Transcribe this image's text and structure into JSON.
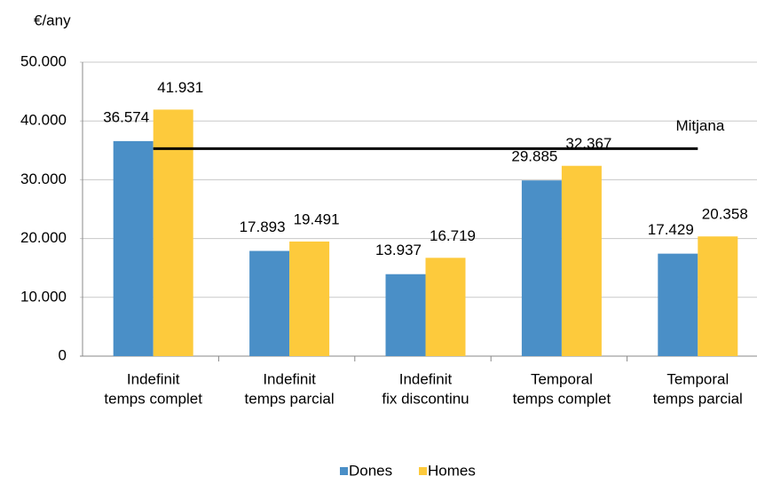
{
  "chart_data": {
    "type": "bar",
    "y_label": "€/any",
    "categories": [
      [
        "Indefinit",
        "temps complet"
      ],
      [
        "Indefinit",
        "temps parcial"
      ],
      [
        "Indefinit",
        "fix discontinu"
      ],
      [
        "Temporal",
        "temps complet"
      ],
      [
        "Temporal",
        "temps parcial"
      ]
    ],
    "series": [
      {
        "name": "Dones",
        "color": "#4a8fc7",
        "values": [
          36574,
          17893,
          13937,
          29885,
          17429
        ],
        "value_labels": [
          "36.574",
          "17.893",
          "13.937",
          "29.885",
          "17.429"
        ]
      },
      {
        "name": "Homes",
        "color": "#fdca3c",
        "values": [
          41931,
          19491,
          16719,
          32367,
          20358
        ],
        "value_labels": [
          "41.931",
          "19.491",
          "16.719",
          "32.367",
          "20.358"
        ]
      }
    ],
    "mean": {
      "label": "Mitjana",
      "value": 35300,
      "color": "#000000"
    },
    "ylim": [
      0,
      50000
    ],
    "yticks": [
      0,
      {
        "value": 10000,
        "label": "10.000"
      },
      {
        "value": 20000,
        "label": "20.000"
      },
      {
        "value": 30000,
        "label": "30.000"
      },
      {
        "value": 40000,
        "label": "40.000"
      },
      {
        "value": 50000,
        "label": "50.000"
      }
    ],
    "grid": true,
    "legend": "bottom"
  }
}
